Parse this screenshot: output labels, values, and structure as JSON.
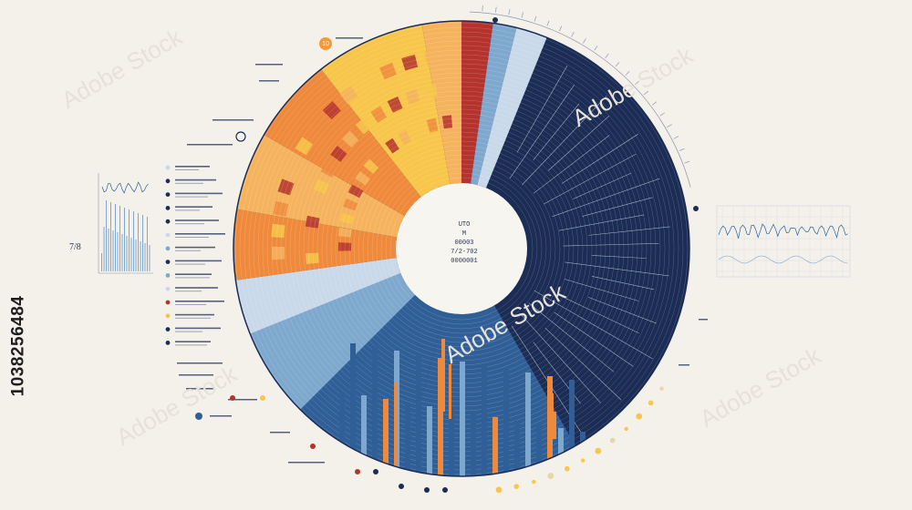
{
  "side_id": "1038256484",
  "watermark": "Adobe Stock",
  "badge": "10",
  "left_num": "7/8",
  "center_lines": [
    "UTO",
    "M",
    "00003",
    "7/2-702",
    "0000001"
  ],
  "colors": {
    "navy": "#1b2c55",
    "mid_blue": "#2f5f96",
    "light_blue": "#7fa8cf",
    "pale_blue": "#c9d9ea",
    "orange": "#ef8a3c",
    "light_orange": "#f5b35e",
    "yellow": "#f7c64a",
    "red": "#b5332e",
    "background": "#f4f1ea"
  }
}
